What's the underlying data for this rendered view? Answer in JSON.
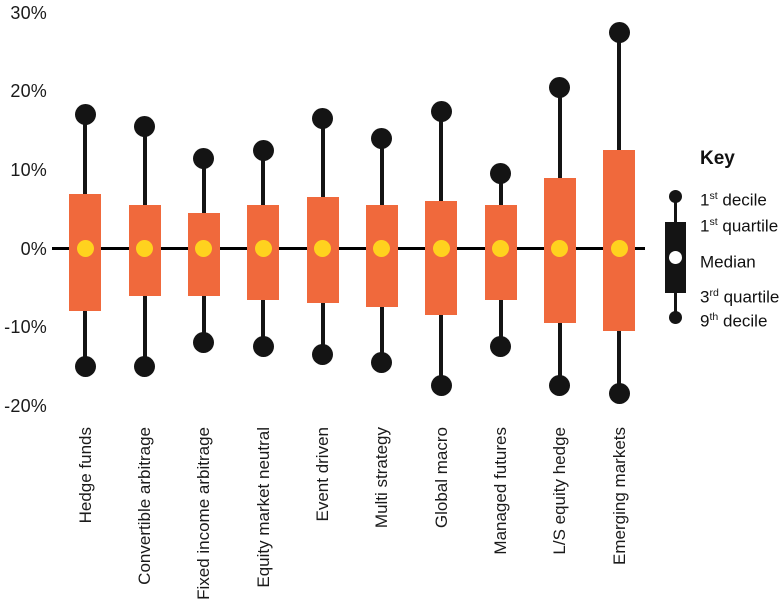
{
  "chart_data": {
    "type": "boxplot",
    "unit": "%",
    "y_axis": {
      "ticks": [
        {
          "label": "30%",
          "value": 30
        },
        {
          "label": "20%",
          "value": 20
        },
        {
          "label": "10%",
          "value": 10
        },
        {
          "label": "0%",
          "value": 0
        },
        {
          "label": "-10%",
          "value": -10
        },
        {
          "label": "-20%",
          "value": -20
        }
      ],
      "ylim": [
        -20,
        30
      ],
      "grid": false
    },
    "categories": [
      "Hedge funds",
      "Convertible arbitrage",
      "Fixed income arbitrage",
      "Equity market neutral",
      "Event driven",
      "Multi strategy",
      "Global macro",
      "Managed futures",
      "L/S equity hedge",
      "Emerging markets"
    ],
    "series": [
      {
        "name": "Hedge funds",
        "first_decile": 17,
        "first_quartile": 7,
        "median": 0,
        "third_quartile": -8,
        "ninth_decile": -15
      },
      {
        "name": "Convertible arbitrage",
        "first_decile": 15.5,
        "first_quartile": 5.5,
        "median": 0,
        "third_quartile": -6,
        "ninth_decile": -15
      },
      {
        "name": "Fixed income arbitrage",
        "first_decile": 11.5,
        "first_quartile": 4.5,
        "median": 0,
        "third_quartile": -6,
        "ninth_decile": -12
      },
      {
        "name": "Equity market neutral",
        "first_decile": 12.5,
        "first_quartile": 5.5,
        "median": 0,
        "third_quartile": -6.5,
        "ninth_decile": -12.5
      },
      {
        "name": "Event driven",
        "first_decile": 16.5,
        "first_quartile": 6.5,
        "median": 0,
        "third_quartile": -7,
        "ninth_decile": -13.5
      },
      {
        "name": "Multi strategy",
        "first_decile": 14,
        "first_quartile": 5.5,
        "median": 0,
        "third_quartile": -7.5,
        "ninth_decile": -14.5
      },
      {
        "name": "Global macro",
        "first_decile": 17.5,
        "first_quartile": 6,
        "median": 0,
        "third_quartile": -8.5,
        "ninth_decile": -17.5
      },
      {
        "name": "Managed futures",
        "first_decile": 9.5,
        "first_quartile": 5.5,
        "median": 0,
        "third_quartile": -6.5,
        "ninth_decile": -12.5
      },
      {
        "name": "L/S equity hedge",
        "first_decile": 20.5,
        "first_quartile": 9,
        "median": 0,
        "third_quartile": -9.5,
        "ninth_decile": -17.5
      },
      {
        "name": "Emerging markets",
        "first_decile": 27.5,
        "first_quartile": 12.5,
        "median": 0,
        "third_quartile": -10.5,
        "ninth_decile": -18.5
      }
    ],
    "colors": {
      "box": "#F0693C",
      "median_dot": "#FFD21E",
      "whisker": "#141414",
      "axis_line": "#000000",
      "text": "#1A1A1A"
    },
    "legend_position": "right"
  },
  "key": {
    "title": "Key",
    "items": [
      {
        "pre": "1",
        "sup": "st",
        "post": " decile"
      },
      {
        "pre": "1",
        "sup": "st",
        "post": " quartile"
      },
      {
        "pre": "Median",
        "sup": "",
        "post": ""
      },
      {
        "pre": "3",
        "sup": "rd",
        "post": " quartile"
      },
      {
        "pre": "9",
        "sup": "th",
        "post": " decile"
      }
    ]
  }
}
